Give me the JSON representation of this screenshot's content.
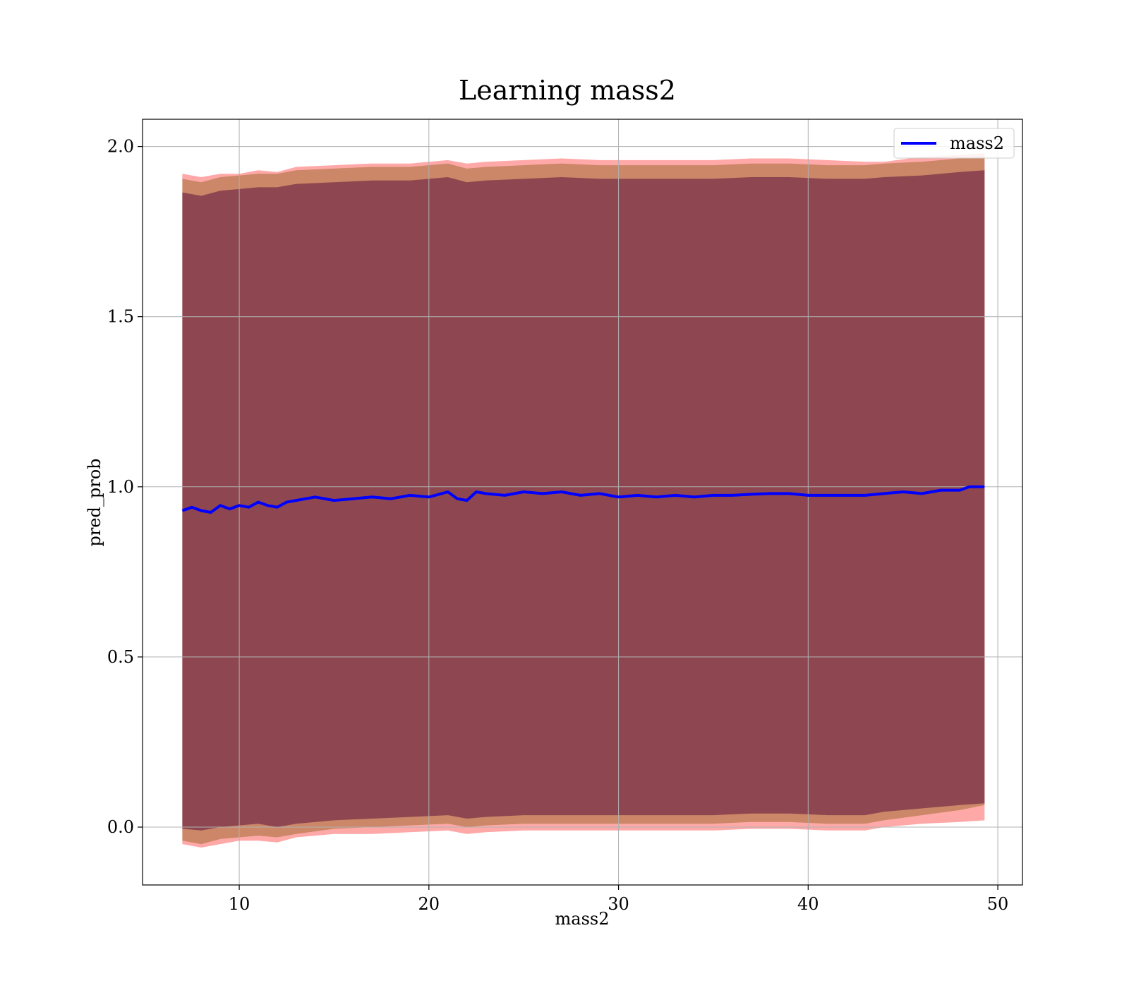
{
  "chart_data": {
    "type": "line",
    "title": "Learning mass2",
    "xlabel": "mass2",
    "ylabel": "pred_prob",
    "xlim": [
      4.9,
      51.3
    ],
    "ylim": [
      -0.17,
      2.08
    ],
    "xticks": [
      10,
      20,
      30,
      40,
      50
    ],
    "yticks": [
      0.0,
      0.5,
      1.0,
      1.5,
      2.0
    ],
    "xtick_labels": [
      "10",
      "20",
      "30",
      "40",
      "50"
    ],
    "ytick_labels": [
      "0.0",
      "0.5",
      "1.0",
      "1.5",
      "2.0"
    ],
    "grid": true,
    "legend_position": "upper right",
    "series": [
      {
        "name": "mass2",
        "color": "#0000ff",
        "x": [
          7.0,
          7.5,
          8.0,
          8.5,
          9.0,
          9.5,
          10.0,
          10.5,
          11.0,
          11.5,
          12.0,
          12.5,
          13.0,
          14.0,
          15.0,
          16.0,
          17.0,
          18.0,
          19.0,
          20.0,
          21.0,
          21.5,
          22.0,
          22.5,
          23.0,
          24.0,
          25.0,
          26.0,
          27.0,
          28.0,
          29.0,
          30.0,
          31.0,
          32.0,
          33.0,
          34.0,
          35.0,
          36.0,
          37.0,
          38.0,
          39.0,
          40.0,
          41.0,
          42.0,
          43.0,
          44.0,
          45.0,
          46.0,
          47.0,
          48.0,
          48.5,
          49.3
        ],
        "y": [
          0.93,
          0.94,
          0.93,
          0.925,
          0.945,
          0.935,
          0.945,
          0.94,
          0.955,
          0.945,
          0.94,
          0.955,
          0.96,
          0.97,
          0.96,
          0.965,
          0.97,
          0.965,
          0.975,
          0.97,
          0.985,
          0.965,
          0.96,
          0.985,
          0.98,
          0.975,
          0.985,
          0.98,
          0.985,
          0.975,
          0.98,
          0.97,
          0.975,
          0.97,
          0.975,
          0.97,
          0.975,
          0.975,
          0.978,
          0.98,
          0.98,
          0.975,
          0.975,
          0.975,
          0.975,
          0.98,
          0.985,
          0.98,
          0.99,
          0.99,
          1.0,
          1.0
        ]
      }
    ],
    "bands": [
      {
        "color": "#ff9999",
        "x": [
          7.0,
          8.0,
          9.0,
          10.0,
          11.0,
          12.0,
          13.0,
          15.0,
          17.0,
          19.0,
          21.0,
          22.0,
          23.0,
          25.0,
          27.0,
          29.0,
          31.0,
          33.0,
          35.0,
          37.0,
          39.0,
          41.0,
          43.0,
          44.0,
          46.0,
          48.0,
          49.3
        ],
        "lower": [
          -0.05,
          -0.06,
          -0.05,
          -0.04,
          -0.04,
          -0.045,
          -0.03,
          -0.02,
          -0.02,
          -0.015,
          -0.01,
          -0.02,
          -0.015,
          -0.01,
          -0.01,
          -0.01,
          -0.01,
          -0.01,
          -0.01,
          -0.005,
          -0.005,
          -0.01,
          -0.01,
          0.0,
          0.01,
          0.015,
          0.02
        ],
        "upper": [
          1.92,
          1.91,
          1.92,
          1.92,
          1.93,
          1.925,
          1.94,
          1.945,
          1.95,
          1.95,
          1.96,
          1.95,
          1.955,
          1.96,
          1.965,
          1.96,
          1.96,
          1.96,
          1.96,
          1.965,
          1.965,
          1.96,
          1.955,
          1.955,
          1.97,
          1.975,
          1.98
        ]
      },
      {
        "color": "#a16c32",
        "x": [
          7.0,
          8.0,
          9.0,
          10.0,
          11.0,
          12.0,
          13.0,
          15.0,
          17.0,
          19.0,
          21.0,
          22.0,
          23.0,
          25.0,
          27.0,
          29.0,
          31.0,
          33.0,
          35.0,
          37.0,
          39.0,
          41.0,
          43.0,
          44.0,
          46.0,
          48.0,
          49.3
        ],
        "lower": [
          -0.04,
          -0.05,
          -0.035,
          -0.03,
          -0.025,
          -0.03,
          -0.02,
          -0.005,
          0.0,
          0.005,
          0.01,
          0.0,
          0.005,
          0.01,
          0.01,
          0.01,
          0.01,
          0.01,
          0.01,
          0.015,
          0.015,
          0.01,
          0.01,
          0.02,
          0.035,
          0.05,
          0.065
        ]
      },
      {
        "color": "#7a3248",
        "x": [
          7.0,
          8.0,
          9.0,
          10.0,
          11.0,
          12.0,
          13.0,
          15.0,
          17.0,
          19.0,
          21.0,
          22.0,
          23.0,
          25.0,
          27.0,
          29.0,
          31.0,
          33.0,
          35.0,
          37.0,
          39.0,
          41.0,
          43.0,
          44.0,
          46.0,
          48.0,
          49.3
        ],
        "lower": [
          -0.005,
          -0.01,
          0.0,
          0.005,
          0.01,
          0.0,
          0.01,
          0.02,
          0.025,
          0.03,
          0.035,
          0.025,
          0.03,
          0.035,
          0.035,
          0.035,
          0.035,
          0.035,
          0.035,
          0.04,
          0.04,
          0.035,
          0.035,
          0.045,
          0.055,
          0.065,
          0.07
        ],
        "upper": [
          1.865,
          1.855,
          1.87,
          1.875,
          1.88,
          1.88,
          1.89,
          1.895,
          1.9,
          1.9,
          1.91,
          1.895,
          1.9,
          1.905,
          1.91,
          1.905,
          1.905,
          1.905,
          1.905,
          1.91,
          1.91,
          1.905,
          1.905,
          1.91,
          1.915,
          1.925,
          1.93
        ]
      }
    ]
  }
}
